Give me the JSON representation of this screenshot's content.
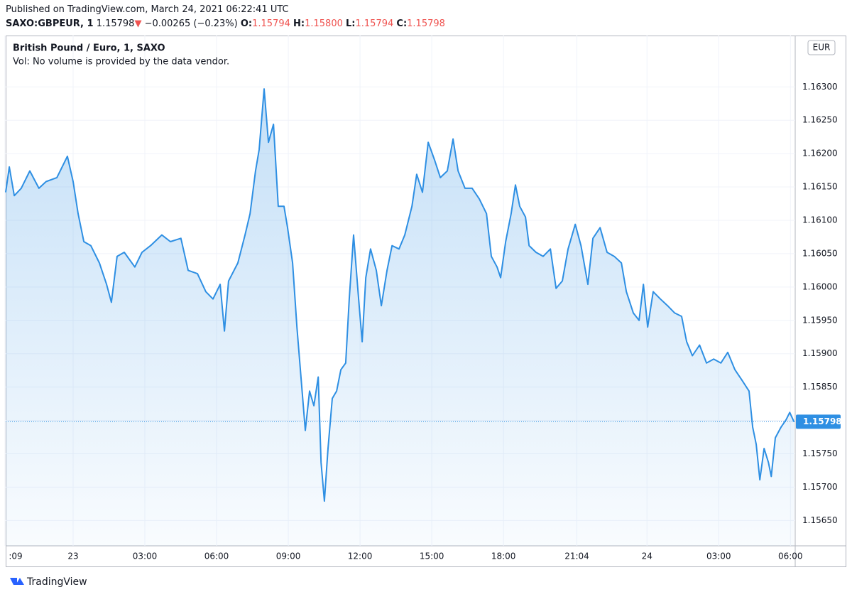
{
  "header": {
    "published": "Published on TradingView.com, March 24, 2021 06:22:41 UTC",
    "symbol": "SAXO:GBPEUR, 1",
    "last": "1.15798",
    "arrow": "▼",
    "change": "−0.00265 (−0.23%)",
    "o_label": "O:",
    "o": "1.15794",
    "h_label": "H:",
    "h": "1.15800",
    "l_label": "L:",
    "l": "1.15794",
    "c_label": "C:",
    "c": "1.15798"
  },
  "legend": {
    "title": "British Pound / Euro, 1, SAXO",
    "volume": "Vol: No volume is provided by the data vendor."
  },
  "currency": "EUR",
  "footer": "TradingView",
  "chart_data": {
    "type": "area",
    "grid": true,
    "series": [
      {
        "name": "British Pound / Euro, 1, SAXO",
        "color": "#2e8fe3",
        "x": [
          -2.82,
          -2.67,
          -2.46,
          -2.17,
          -1.81,
          -1.43,
          -1.13,
          -0.68,
          -0.24,
          0,
          0.21,
          0.45,
          0.74,
          1.1,
          1.4,
          1.6,
          1.84,
          2.14,
          2.58,
          2.88,
          3.24,
          3.71,
          4.07,
          4.51,
          4.81,
          5.2,
          5.55,
          5.85,
          6.15,
          6.33,
          6.5,
          6.89,
          7.19,
          7.4,
          7.63,
          7.78,
          7.99,
          8.17,
          8.38,
          8.58,
          8.82,
          8.97,
          9.18,
          9.36,
          9.53,
          9.71,
          9.89,
          10.07,
          10.25,
          10.37,
          10.51,
          10.66,
          10.84,
          11.02,
          11.2,
          11.4,
          11.55,
          11.73,
          11.94,
          12.09,
          12.24,
          12.44,
          12.68,
          12.89,
          13.13,
          13.34,
          13.63,
          13.87,
          14.17,
          14.37,
          14.61,
          14.85,
          15.12,
          15.36,
          15.65,
          15.89,
          16.1,
          16.39,
          16.69,
          16.99,
          17.29,
          17.49,
          17.73,
          17.88,
          18.09,
          18.32,
          18.5,
          18.68,
          18.92,
          19.07,
          19.36,
          19.66,
          19.96,
          20.2,
          20.46,
          20.7,
          21,
          21.24,
          21.53,
          21.74,
          22.04,
          22.33,
          22.63,
          22.93,
          23.14,
          23.43,
          23.67,
          23.85,
          24.03,
          24.26,
          24.56,
          24.86,
          25.16,
          25.45,
          25.66,
          25.9,
          26.2,
          26.49,
          26.79,
          27.09,
          27.38,
          27.68,
          27.98,
          28.27,
          28.42,
          28.57,
          28.72,
          28.9,
          29.08,
          29.2,
          29.37,
          29.61,
          29.82,
          29.97,
          30.15
        ],
        "values": [
          1.16142,
          1.1618,
          1.16137,
          1.16148,
          1.16174,
          1.16148,
          1.16158,
          1.16164,
          1.16196,
          1.16158,
          1.1611,
          1.16068,
          1.16062,
          1.16036,
          1.16004,
          1.15977,
          1.16046,
          1.16052,
          1.1603,
          1.16052,
          1.16062,
          1.16078,
          1.16068,
          1.16073,
          1.16025,
          1.1602,
          1.15993,
          1.15982,
          1.16004,
          1.15934,
          1.16009,
          1.16036,
          1.16078,
          1.1611,
          1.16174,
          1.16206,
          1.16297,
          1.16217,
          1.16244,
          1.16121,
          1.16121,
          1.16089,
          1.16036,
          1.1594,
          1.15865,
          1.15785,
          1.15844,
          1.15822,
          1.15865,
          1.15737,
          1.15679,
          1.15758,
          1.15833,
          1.15844,
          1.15876,
          1.15886,
          1.15982,
          1.16078,
          1.15982,
          1.15918,
          1.16014,
          1.16057,
          1.16025,
          1.15972,
          1.16025,
          1.16062,
          1.16057,
          1.16078,
          1.16121,
          1.16169,
          1.16142,
          1.16217,
          1.1619,
          1.16164,
          1.16174,
          1.16222,
          1.16174,
          1.16148,
          1.16148,
          1.16132,
          1.1611,
          1.16046,
          1.1603,
          1.16014,
          1.16068,
          1.1611,
          1.16153,
          1.16121,
          1.16105,
          1.16062,
          1.16052,
          1.16046,
          1.16057,
          1.15998,
          1.16009,
          1.16057,
          1.16094,
          1.16062,
          1.16004,
          1.16073,
          1.16089,
          1.16052,
          1.16046,
          1.16036,
          1.15993,
          1.15961,
          1.1595,
          1.16004,
          1.1594,
          1.15993,
          1.15982,
          1.15972,
          1.15961,
          1.15956,
          1.15918,
          1.15897,
          1.15913,
          1.15886,
          1.15892,
          1.15886,
          1.15902,
          1.15876,
          1.1586,
          1.15844,
          1.1579,
          1.15764,
          1.15711,
          1.15758,
          1.15737,
          1.15716,
          1.15774,
          1.1579,
          1.15801,
          1.15812,
          1.15798
        ]
      }
    ],
    "xlim": [
      -2.82,
      30.2
    ],
    "xticks": [
      {
        "value": -2.85,
        "label": ":09"
      },
      {
        "value": 0,
        "label": "23"
      },
      {
        "value": 3,
        "label": "03:00"
      },
      {
        "value": 6,
        "label": "06:00"
      },
      {
        "value": 9,
        "label": "09:00"
      },
      {
        "value": 12,
        "label": "12:00"
      },
      {
        "value": 15,
        "label": "15:00"
      },
      {
        "value": 18,
        "label": "18:00"
      },
      {
        "value": 21.07,
        "label": "21:04"
      },
      {
        "value": 24,
        "label": "24"
      },
      {
        "value": 27,
        "label": "03:00"
      },
      {
        "value": 30,
        "label": "06:00"
      }
    ],
    "ylim": [
      1.15612,
      1.16377
    ],
    "yticks": [
      {
        "value": 1.1565,
        "label": "1.15650"
      },
      {
        "value": 1.157,
        "label": "1.15700"
      },
      {
        "value": 1.1575,
        "label": "1.15750"
      },
      {
        "value": 1.158,
        "label": "1.15800"
      },
      {
        "value": 1.1585,
        "label": "1.15850"
      },
      {
        "value": 1.159,
        "label": "1.15900"
      },
      {
        "value": 1.1595,
        "label": "1.15950"
      },
      {
        "value": 1.16,
        "label": "1.16000"
      },
      {
        "value": 1.1605,
        "label": "1.16050"
      },
      {
        "value": 1.161,
        "label": "1.16100"
      },
      {
        "value": 1.1615,
        "label": "1.16150"
      },
      {
        "value": 1.162,
        "label": "1.16200"
      },
      {
        "value": 1.1625,
        "label": "1.16250"
      },
      {
        "value": 1.163,
        "label": "1.16300"
      }
    ]
  }
}
